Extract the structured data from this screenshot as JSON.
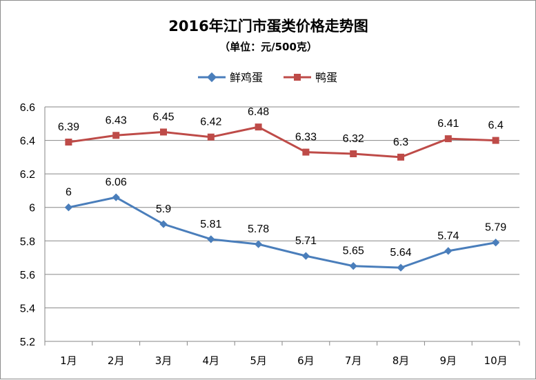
{
  "chart_data": {
    "type": "line",
    "title": "2016年江门市蛋类价格走势图",
    "subtitle": "（单位：元/500克）",
    "categories": [
      "1月",
      "2月",
      "3月",
      "4月",
      "5月",
      "6月",
      "7月",
      "8月",
      "9月",
      "10月"
    ],
    "series": [
      {
        "name": "鲜鸡蛋",
        "color": "#4a7ebb",
        "marker": "diamond",
        "values": [
          6,
          6.06,
          5.9,
          5.81,
          5.78,
          5.71,
          5.65,
          5.64,
          5.74,
          5.79
        ],
        "labels": [
          "6",
          "6.06",
          "5.9",
          "5.81",
          "5.78",
          "5.71",
          "5.65",
          "5.64",
          "5.74",
          "5.79"
        ]
      },
      {
        "name": "鸭蛋",
        "color": "#be4b48",
        "marker": "square",
        "values": [
          6.39,
          6.43,
          6.45,
          6.42,
          6.48,
          6.33,
          6.32,
          6.3,
          6.41,
          6.4
        ],
        "labels": [
          "6.39",
          "6.43",
          "6.45",
          "6.42",
          "6.48",
          "6.33",
          "6.32",
          "6.3",
          "6.41",
          "6.4"
        ]
      }
    ],
    "ylim": [
      5.2,
      6.6
    ],
    "yticks": [
      "5.2",
      "5.4",
      "5.6",
      "5.8",
      "6",
      "6.2",
      "6.4",
      "6.6"
    ],
    "grid": true,
    "legend_position": "top"
  }
}
